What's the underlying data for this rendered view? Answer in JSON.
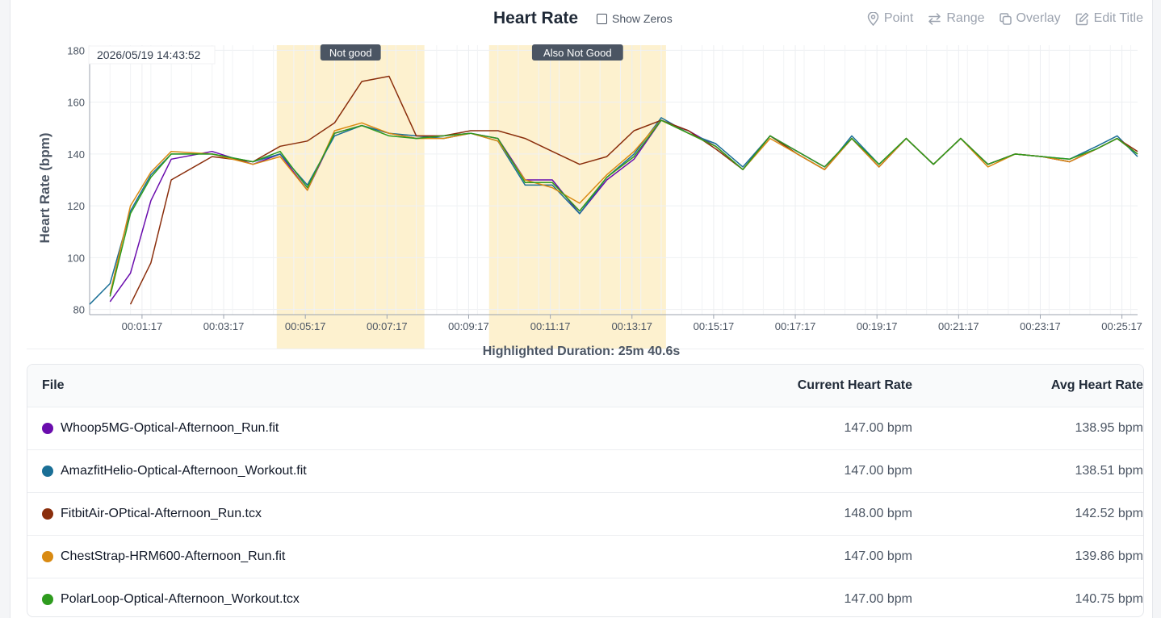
{
  "header": {
    "title": "Heart Rate",
    "show_zeros_label": "Show Zeros",
    "tools": [
      {
        "label": "Point",
        "icon": "map-pin-icon"
      },
      {
        "label": "Range",
        "icon": "arrows-exchange-icon"
      },
      {
        "label": "Overlay",
        "icon": "copy-icon"
      },
      {
        "label": "Edit Title",
        "icon": "edit-icon"
      }
    ]
  },
  "chart_data": {
    "type": "line",
    "ylabel": "Heart Rate (bpm)",
    "xlabel": "",
    "ylim": [
      78,
      182
    ],
    "yticks": [
      80,
      100,
      120,
      140,
      160,
      180
    ],
    "xlim": [
      "00:00:00",
      "00:25:40"
    ],
    "xticks": [
      "00:01:17",
      "00:03:17",
      "00:05:17",
      "00:07:17",
      "00:09:17",
      "00:11:17",
      "00:13:17",
      "00:15:17",
      "00:17:17",
      "00:19:17",
      "00:21:17",
      "00:23:17",
      "00:25:17"
    ],
    "grid": true,
    "cursor_timestamp": "2026/05/19 14:43:52",
    "highlights": [
      {
        "label": "Not good",
        "start": "00:04:35",
        "end": "00:08:12",
        "color": "#fdf1cf"
      },
      {
        "label": "Also Not Good",
        "start": "00:09:47",
        "end": "00:14:07",
        "color": "#fdf1cf"
      }
    ],
    "x": [
      "00:00:00",
      "00:00:30",
      "00:01:00",
      "00:01:30",
      "00:02:00",
      "00:03:00",
      "00:04:00",
      "00:04:40",
      "00:05:20",
      "00:06:00",
      "00:06:40",
      "00:07:20",
      "00:08:00",
      "00:08:40",
      "00:09:20",
      "00:10:00",
      "00:10:40",
      "00:11:20",
      "00:12:00",
      "00:12:40",
      "00:13:20",
      "00:14:00",
      "00:14:40",
      "00:15:20",
      "00:16:00",
      "00:16:40",
      "00:17:20",
      "00:18:00",
      "00:18:40",
      "00:19:20",
      "00:20:00",
      "00:20:40",
      "00:21:20",
      "00:22:00",
      "00:22:40",
      "00:23:20",
      "00:24:00",
      "00:24:40",
      "00:25:10",
      "00:25:40"
    ],
    "series": [
      {
        "name": "Whoop5MG-Optical-Afternoon_Run.fit",
        "color": "#6a0dad",
        "values": [
          null,
          83,
          94,
          122,
          138,
          141,
          136,
          140,
          126,
          148,
          151,
          148,
          146,
          147,
          148,
          146,
          130,
          130,
          117,
          130,
          138,
          153,
          149,
          143,
          134,
          147,
          141,
          135,
          146,
          135,
          146,
          136,
          146,
          136,
          140,
          139,
          137,
          142,
          146,
          140
        ]
      },
      {
        "name": "AmazfitHelio-Optical-Afternoon_Workout.fit",
        "color": "#1a6f96",
        "values": [
          82,
          90,
          118,
          132,
          140,
          140,
          137,
          140,
          128,
          147,
          151,
          148,
          147,
          146,
          148,
          145,
          128,
          128,
          117,
          131,
          140,
          154,
          148,
          144,
          135,
          147,
          140,
          134,
          147,
          136,
          146,
          136,
          146,
          136,
          140,
          139,
          138,
          143,
          147,
          139
        ]
      },
      {
        "name": "FitbitAir-OPtical-Afternoon_Run.tcx",
        "color": "#8a2e0c",
        "values": [
          null,
          null,
          82,
          98,
          130,
          139,
          137,
          143,
          145,
          152,
          168,
          170,
          147,
          147,
          149,
          149,
          146,
          141,
          136,
          139,
          149,
          153,
          149,
          142,
          134,
          147,
          140,
          134,
          146,
          135,
          146,
          136,
          146,
          136,
          140,
          139,
          137,
          142,
          146,
          141
        ]
      },
      {
        "name": "ChestStrap-HRM600-Afternoon_Run.fit",
        "color": "#d98a12",
        "values": [
          null,
          86,
          120,
          133,
          141,
          140,
          136,
          139,
          126,
          149,
          152,
          148,
          146,
          146,
          148,
          145,
          130,
          127,
          121,
          132,
          141,
          153,
          148,
          143,
          134,
          146,
          140,
          134,
          146,
          135,
          146,
          136,
          146,
          135,
          140,
          139,
          137,
          142,
          146,
          140
        ]
      },
      {
        "name": "PolarLoop-Optical-Afternoon_Workout.tcx",
        "color": "#2e9b1e",
        "values": [
          null,
          85,
          117,
          131,
          140,
          140,
          137,
          141,
          127,
          148,
          151,
          147,
          146,
          147,
          148,
          146,
          129,
          129,
          118,
          131,
          139,
          153,
          148,
          143,
          134,
          147,
          141,
          135,
          146,
          136,
          146,
          136,
          146,
          136,
          140,
          139,
          138,
          142,
          146,
          140
        ]
      }
    ]
  },
  "highlighted_duration": "Highlighted Duration: 25m 40.6s",
  "table": {
    "headers": {
      "file": "File",
      "current": "Current Heart Rate",
      "avg": "Avg Heart Rate"
    },
    "rows": [
      {
        "file": "Whoop5MG-Optical-Afternoon_Run.fit",
        "color": "#6a0dad",
        "current": "147.00 bpm",
        "avg": "138.95 bpm"
      },
      {
        "file": "AmazfitHelio-Optical-Afternoon_Workout.fit",
        "color": "#1a6f96",
        "current": "147.00 bpm",
        "avg": "138.51 bpm"
      },
      {
        "file": "FitbitAir-OPtical-Afternoon_Run.tcx",
        "color": "#8a2e0c",
        "current": "148.00 bpm",
        "avg": "142.52 bpm"
      },
      {
        "file": "ChestStrap-HRM600-Afternoon_Run.fit",
        "color": "#d98a12",
        "current": "147.00 bpm",
        "avg": "139.86 bpm"
      },
      {
        "file": "PolarLoop-Optical-Afternoon_Workout.tcx",
        "color": "#2e9b1e",
        "current": "147.00 bpm",
        "avg": "140.75 bpm"
      }
    ]
  }
}
